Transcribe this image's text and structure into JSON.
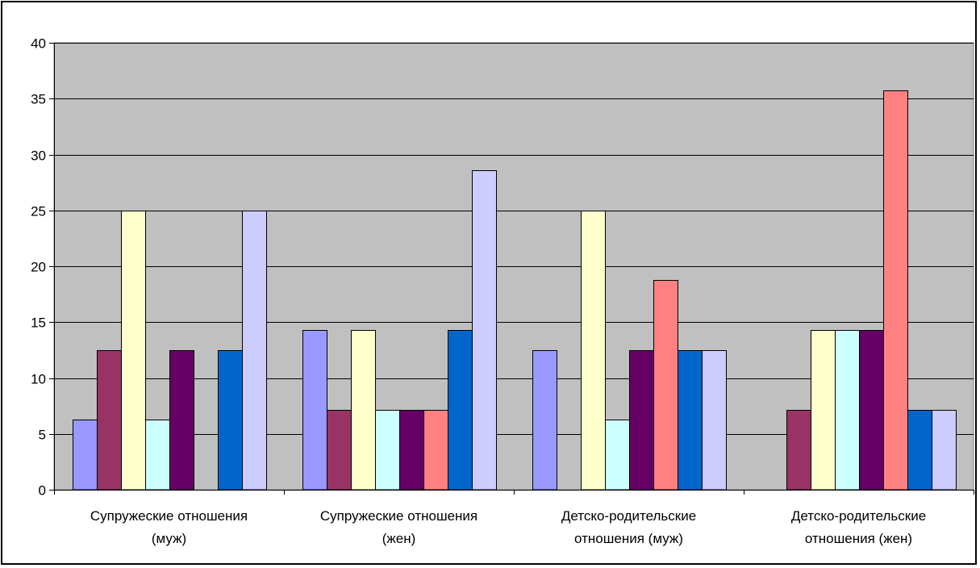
{
  "chart_data": {
    "type": "bar",
    "title": "",
    "xlabel": "",
    "ylabel": "",
    "ylim": [
      0,
      40
    ],
    "yticks": [
      0,
      5,
      10,
      15,
      20,
      25,
      30,
      35,
      40
    ],
    "grid": true,
    "legend": "none",
    "plot_background": "#c0c0c0",
    "categories": [
      [
        "Супружеские отношения",
        "(муж)"
      ],
      [
        "Супружеские отношения",
        "(жен)"
      ],
      [
        "Детско-родительские",
        "отношения (муж)"
      ],
      [
        "Детско-родительские",
        "отношения (жен)"
      ]
    ],
    "series": [
      {
        "color": "#9999ff",
        "values": [
          6.25,
          14.29,
          12.5,
          0
        ]
      },
      {
        "color": "#993366",
        "values": [
          12.5,
          7.14,
          0,
          7.14
        ]
      },
      {
        "color": "#ffffcc",
        "values": [
          25,
          14.29,
          25,
          14.29
        ]
      },
      {
        "color": "#ccffff",
        "values": [
          6.25,
          7.14,
          6.25,
          14.29
        ]
      },
      {
        "color": "#660066",
        "values": [
          12.5,
          7.14,
          12.5,
          14.29
        ]
      },
      {
        "color": "#ff8080",
        "values": [
          0,
          7.14,
          18.75,
          35.71
        ]
      },
      {
        "color": "#0066cc",
        "values": [
          12.5,
          14.29,
          12.5,
          7.14
        ]
      },
      {
        "color": "#ccccff",
        "values": [
          25,
          28.57,
          12.5,
          7.14
        ]
      }
    ]
  }
}
